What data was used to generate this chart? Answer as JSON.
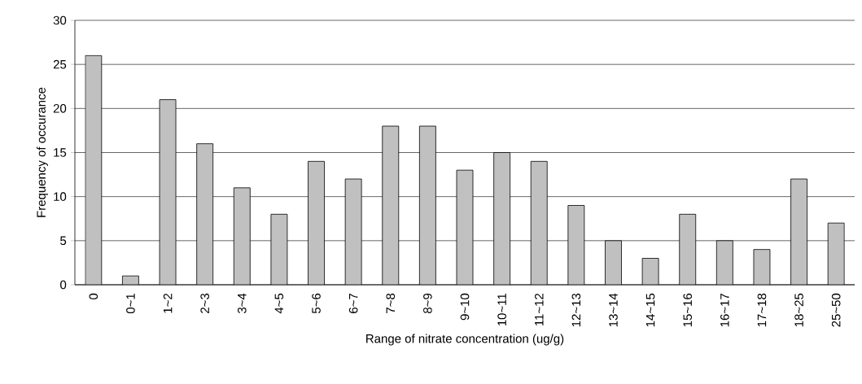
{
  "chart_data": {
    "type": "bar",
    "xlabel": "Range of nitrate concentration (ug/g)",
    "ylabel": "Frequency of occurance",
    "categories": [
      "0",
      "0~1",
      "1~2",
      "2~3",
      "3~4",
      "4~5",
      "5~6",
      "6~7",
      "7~8",
      "8~9",
      "9~10",
      "10~11",
      "11~12",
      "12~13",
      "13~14",
      "14~15",
      "15~16",
      "16~17",
      "17~18",
      "18~25",
      "25~50"
    ],
    "values": [
      26,
      1,
      21,
      16,
      11,
      8,
      14,
      12,
      18,
      18,
      13,
      15,
      14,
      9,
      5,
      3,
      8,
      5,
      4,
      12,
      7
    ],
    "color": "#c0c0c0",
    "ylim": [
      0,
      30
    ],
    "yticks": [
      0,
      5,
      10,
      15,
      20,
      25,
      30
    ],
    "grid": "y"
  }
}
